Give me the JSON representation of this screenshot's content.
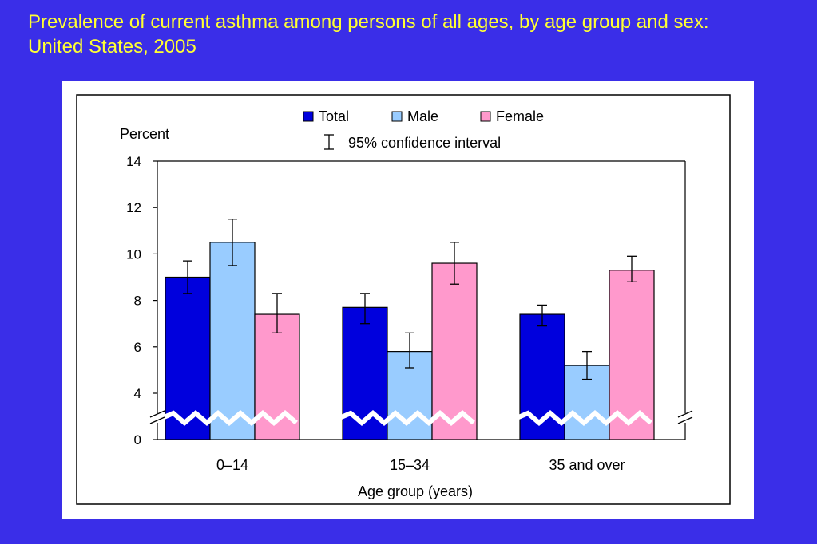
{
  "slide": {
    "title_line1": "Prevalence of current asthma among persons of all ages, by age group and sex:",
    "title_line2": "United States, 2005"
  },
  "chart_data": {
    "type": "bar",
    "title": "Prevalence of current asthma among persons of all ages, by age group and sex: United States, 2005",
    "ylabel": "Percent",
    "xlabel": "Age group (years)",
    "categories": [
      "0–14",
      "15–34",
      "35 and over"
    ],
    "series": [
      {
        "name": "Total",
        "color": "#0000dd",
        "values": [
          9.0,
          7.7,
          7.4
        ],
        "ci_low": [
          8.3,
          7.0,
          6.9
        ],
        "ci_high": [
          9.7,
          8.3,
          7.8
        ]
      },
      {
        "name": "Male",
        "color": "#99ccff",
        "values": [
          10.5,
          5.8,
          5.2
        ],
        "ci_low": [
          9.5,
          5.1,
          4.6
        ],
        "ci_high": [
          11.5,
          6.6,
          5.8
        ]
      },
      {
        "name": "Female",
        "color": "#ff99cc",
        "values": [
          7.4,
          9.6,
          9.3
        ],
        "ci_low": [
          6.6,
          8.7,
          8.8
        ],
        "ci_high": [
          8.3,
          10.5,
          9.9
        ]
      }
    ],
    "ci_label": "95% confidence interval",
    "yticks": [
      0,
      4,
      6,
      8,
      10,
      12,
      14
    ],
    "ylim": [
      0,
      14
    ],
    "axis_break": true,
    "grid": false,
    "legend_position": "top-center"
  }
}
